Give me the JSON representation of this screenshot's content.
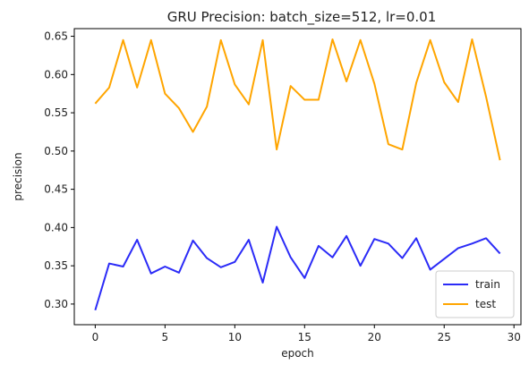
{
  "chart_data": {
    "type": "line",
    "title": "GRU Precision: batch_size=512, lr=0.01",
    "xlabel": "epoch",
    "ylabel": "precision",
    "xlim": [
      -1.5,
      30.5
    ],
    "ylim": [
      0.273,
      0.66
    ],
    "xticks": [
      0,
      5,
      10,
      15,
      20,
      25,
      30
    ],
    "yticks": [
      0.3,
      0.35,
      0.4,
      0.45,
      0.5,
      0.55,
      0.6,
      0.65
    ],
    "xtick_labels": [
      "0",
      "5",
      "10",
      "15",
      "20",
      "25",
      "30"
    ],
    "ytick_labels": [
      "0.30",
      "0.35",
      "0.40",
      "0.45",
      "0.50",
      "0.55",
      "0.60",
      "0.65"
    ],
    "grid": false,
    "legend_position": "lower-right",
    "x": [
      0,
      1,
      2,
      3,
      4,
      5,
      6,
      7,
      8,
      9,
      10,
      11,
      12,
      13,
      14,
      15,
      16,
      17,
      18,
      19,
      20,
      21,
      22,
      23,
      24,
      25,
      26,
      27,
      28,
      29
    ],
    "series": [
      {
        "name": "train",
        "color": "#2b2bf7",
        "values": [
          0.292,
          0.353,
          0.349,
          0.384,
          0.34,
          0.349,
          0.341,
          0.383,
          0.36,
          0.348,
          0.355,
          0.384,
          0.328,
          0.401,
          0.361,
          0.334,
          0.376,
          0.361,
          0.389,
          0.35,
          0.385,
          0.379,
          0.36,
          0.386,
          0.345,
          0.359,
          0.373,
          0.379,
          0.386,
          0.366
        ]
      },
      {
        "name": "test",
        "color": "#ffa500",
        "values": [
          0.562,
          0.583,
          0.645,
          0.583,
          0.645,
          0.575,
          0.556,
          0.525,
          0.558,
          0.645,
          0.587,
          0.561,
          0.645,
          0.502,
          0.585,
          0.567,
          0.567,
          0.646,
          0.591,
          0.645,
          0.588,
          0.509,
          0.502,
          0.589,
          0.645,
          0.59,
          0.564,
          0.646,
          0.571,
          0.488
        ]
      }
    ]
  }
}
